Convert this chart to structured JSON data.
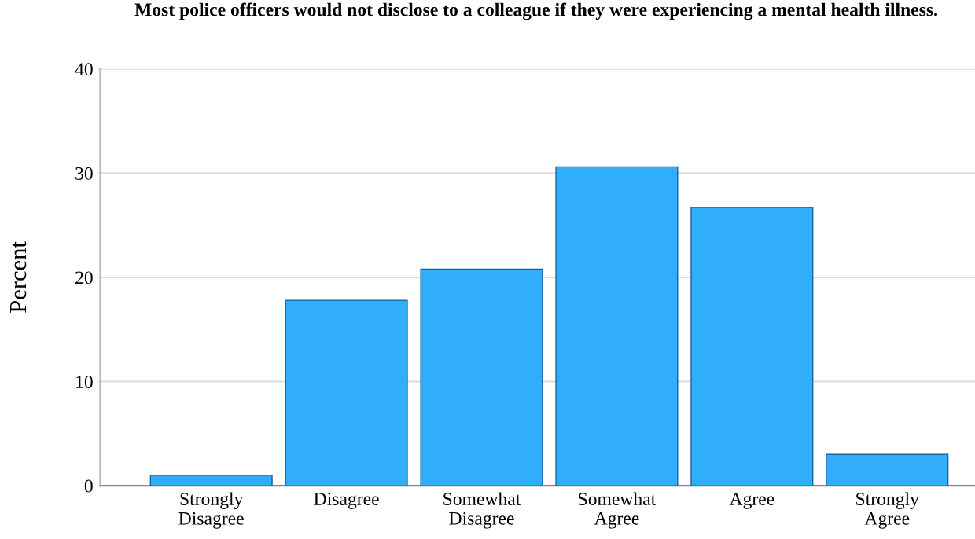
{
  "chart_data": {
    "type": "bar",
    "title": "Most police officers would not disclose to a colleague if they were experiencing a mental health illness.",
    "ylabel": "Percent",
    "categories": [
      "Strongly\nDisagree",
      "Disagree",
      "Somewhat\nDisagree",
      "Somewhat\nAgree",
      "Agree",
      "Strongly\nAgree"
    ],
    "values": [
      1.0,
      17.8,
      20.8,
      30.6,
      26.7,
      3.0
    ],
    "color": "#30aefc",
    "ylim": [
      0,
      40
    ],
    "yticks": [
      0,
      10,
      20,
      30,
      40
    ],
    "grid": "y"
  }
}
